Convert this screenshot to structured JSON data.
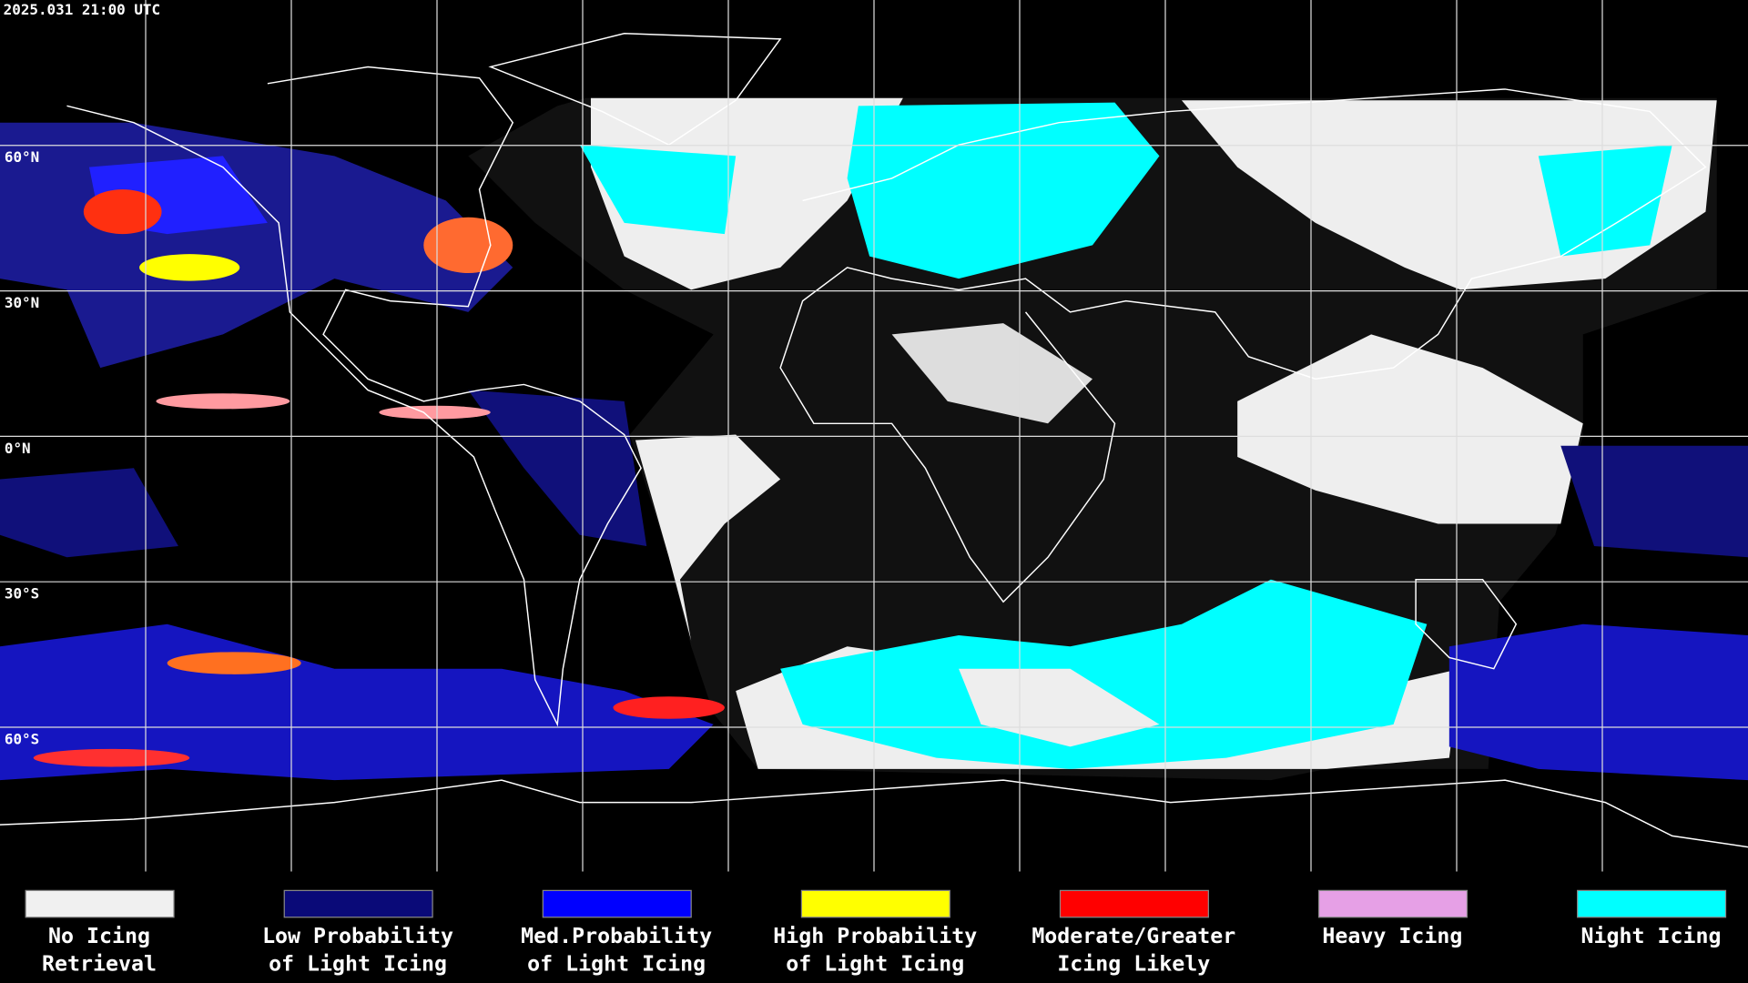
{
  "timestamp": "2025.031 21:00 UTC",
  "latitude_labels": [
    "60°N",
    "30°N",
    "0°N",
    "30°S",
    "60°S"
  ],
  "legend": [
    {
      "lines": [
        "No Icing",
        "Retrieval"
      ],
      "color": "#f0f0f0"
    },
    {
      "lines": [
        "Low Probability",
        "of Light Icing"
      ],
      "color": "#0a0a78"
    },
    {
      "lines": [
        "Med.Probability",
        "of Light Icing"
      ],
      "color": "#0000ff"
    },
    {
      "lines": [
        "High Probability",
        "of Light Icing"
      ],
      "color": "#ffff00"
    },
    {
      "lines": [
        "Moderate/Greater",
        "Icing Likely"
      ],
      "color": "#ff0000"
    },
    {
      "lines": [
        "Heavy Icing"
      ],
      "color": "#e6a0e6"
    },
    {
      "lines": [
        "Night Icing"
      ],
      "color": "#00ffff"
    }
  ]
}
